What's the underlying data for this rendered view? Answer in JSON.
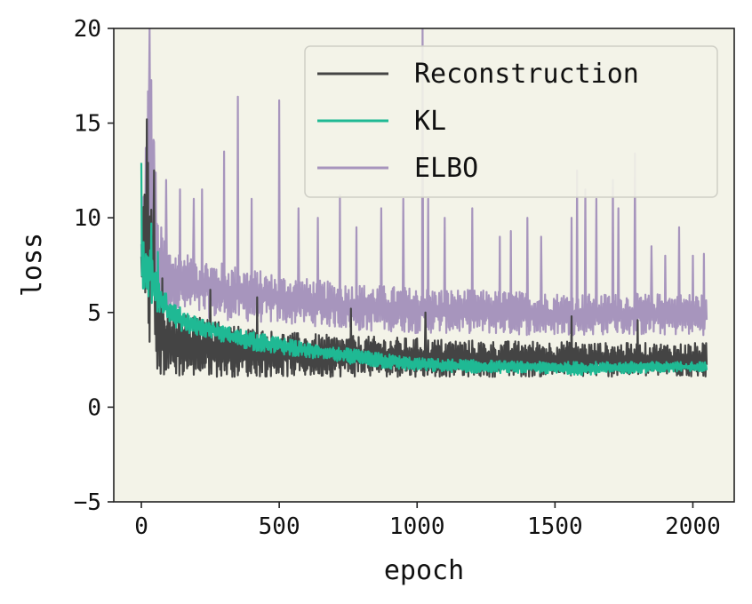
{
  "chart_data": {
    "type": "line",
    "xlabel": "epoch",
    "ylabel": "loss",
    "xlim": [
      -100,
      2150
    ],
    "ylim": [
      -5,
      20
    ],
    "x_ticks": [
      0,
      500,
      1000,
      1500,
      2000
    ],
    "y_ticks": [
      -5,
      0,
      5,
      10,
      15,
      20
    ],
    "x_tick_labels": [
      "0",
      "500",
      "1000",
      "1500",
      "2000"
    ],
    "y_tick_labels": [
      "−5",
      "0",
      "5",
      "10",
      "15",
      "20"
    ],
    "grid": false,
    "legend_position": "top-right",
    "background_color": "#f3f3e8",
    "series": [
      {
        "name": "Reconstruction",
        "color": "#444444",
        "band": [
          [
            0,
            6.8,
            8.0
          ],
          [
            20,
            3.5,
            15.0
          ],
          [
            40,
            2.5,
            13.0
          ],
          [
            60,
            1.6,
            6.5
          ],
          [
            80,
            1.6,
            5.5
          ],
          [
            120,
            1.6,
            5.0
          ],
          [
            200,
            1.6,
            4.8
          ],
          [
            300,
            1.6,
            4.5
          ],
          [
            400,
            1.6,
            4.2
          ],
          [
            500,
            1.6,
            4.0
          ],
          [
            700,
            1.6,
            3.8
          ],
          [
            900,
            1.6,
            3.7
          ],
          [
            1100,
            1.6,
            3.6
          ],
          [
            1300,
            1.6,
            3.5
          ],
          [
            1500,
            1.6,
            3.5
          ],
          [
            1700,
            1.6,
            3.4
          ],
          [
            1900,
            1.6,
            3.4
          ],
          [
            2050,
            1.6,
            3.4
          ]
        ],
        "spikes": [
          [
            20,
            15.2
          ],
          [
            45,
            12.5
          ],
          [
            75,
            6.8
          ],
          [
            250,
            6.2
          ],
          [
            420,
            5.8
          ],
          [
            760,
            5.2
          ],
          [
            1030,
            5.0
          ],
          [
            1560,
            4.8
          ],
          [
            1800,
            4.6
          ]
        ]
      },
      {
        "name": "KL",
        "color": "#1fb994",
        "band": [
          [
            0,
            3.6,
            12.9
          ],
          [
            10,
            5.0,
            8.3
          ],
          [
            30,
            5.5,
            9.5
          ],
          [
            60,
            5.0,
            7.0
          ],
          [
            100,
            4.2,
            5.6
          ],
          [
            200,
            3.8,
            4.8
          ],
          [
            300,
            3.4,
            4.3
          ],
          [
            400,
            3.0,
            4.0
          ],
          [
            500,
            2.8,
            3.7
          ],
          [
            600,
            2.6,
            3.4
          ],
          [
            700,
            2.4,
            3.2
          ],
          [
            800,
            2.2,
            3.0
          ],
          [
            900,
            2.0,
            2.8
          ],
          [
            1000,
            1.9,
            2.6
          ],
          [
            1200,
            1.8,
            2.5
          ],
          [
            1400,
            1.8,
            2.4
          ],
          [
            1600,
            1.7,
            2.4
          ],
          [
            1800,
            1.8,
            2.4
          ],
          [
            2050,
            1.9,
            2.4
          ]
        ],
        "spikes": [
          [
            0,
            12.9
          ],
          [
            35,
            9.7
          ],
          [
            60,
            8.2
          ],
          [
            90,
            6.0
          ],
          [
            120,
            5.4
          ]
        ]
      },
      {
        "name": "ELBO",
        "color": "#a795bd",
        "band": [
          [
            0,
            6.5,
            9.0
          ],
          [
            30,
            5.5,
            20.0
          ],
          [
            60,
            5.0,
            10.0
          ],
          [
            100,
            5.0,
            8.5
          ],
          [
            200,
            4.8,
            8.0
          ],
          [
            300,
            4.6,
            7.6
          ],
          [
            400,
            4.5,
            7.3
          ],
          [
            500,
            4.4,
            7.0
          ],
          [
            600,
            4.3,
            6.8
          ],
          [
            700,
            4.2,
            6.6
          ],
          [
            800,
            4.0,
            6.5
          ],
          [
            900,
            4.0,
            6.4
          ],
          [
            1000,
            3.9,
            6.3
          ],
          [
            1200,
            3.9,
            6.2
          ],
          [
            1400,
            3.8,
            6.1
          ],
          [
            1600,
            3.8,
            6.0
          ],
          [
            1800,
            3.8,
            6.0
          ],
          [
            2050,
            3.8,
            6.0
          ]
        ],
        "spikes": [
          [
            30,
            20.0
          ],
          [
            45,
            14.0
          ],
          [
            90,
            12.0
          ],
          [
            140,
            11.5
          ],
          [
            190,
            11.0
          ],
          [
            220,
            11.5
          ],
          [
            300,
            13.5
          ],
          [
            350,
            16.4
          ],
          [
            400,
            11.0
          ],
          [
            500,
            16.2
          ],
          [
            570,
            10.5
          ],
          [
            640,
            10.0
          ],
          [
            720,
            11.2
          ],
          [
            780,
            9.5
          ],
          [
            870,
            10.5
          ],
          [
            950,
            11.0
          ],
          [
            1020,
            20.0
          ],
          [
            1040,
            11.0
          ],
          [
            1100,
            10.0
          ],
          [
            1200,
            10.5
          ],
          [
            1300,
            9.0
          ],
          [
            1340,
            9.3
          ],
          [
            1400,
            10.0
          ],
          [
            1450,
            9.0
          ],
          [
            1560,
            10.0
          ],
          [
            1580,
            12.5
          ],
          [
            1610,
            11.5
          ],
          [
            1650,
            11.0
          ],
          [
            1710,
            12.0
          ],
          [
            1730,
            10.5
          ],
          [
            1790,
            13.4
          ],
          [
            1850,
            8.5
          ],
          [
            1900,
            8.0
          ],
          [
            1950,
            9.5
          ],
          [
            2000,
            8.0
          ],
          [
            2040,
            8.1
          ]
        ]
      }
    ]
  }
}
